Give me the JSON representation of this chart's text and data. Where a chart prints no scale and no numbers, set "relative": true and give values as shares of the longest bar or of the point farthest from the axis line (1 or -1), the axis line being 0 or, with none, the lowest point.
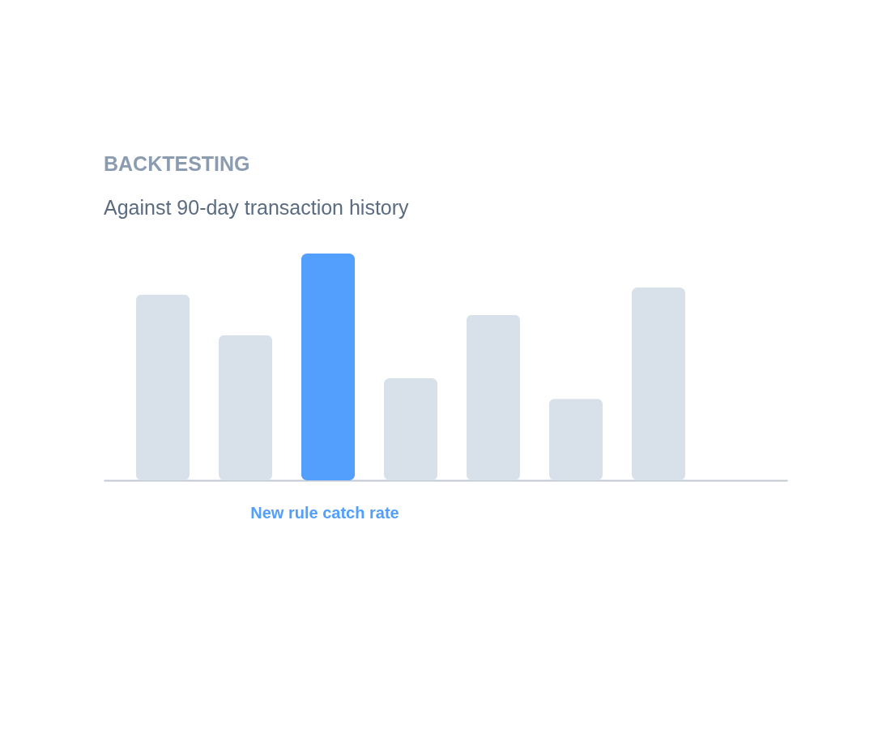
{
  "chart_data": {
    "type": "bar",
    "title": "BACKTESTING",
    "subtitle": "Against 90-day transaction history",
    "categories": [
      null,
      null,
      null,
      null,
      null,
      null,
      null
    ],
    "values": [
      0.82,
      0.64,
      1,
      0.45,
      0.73,
      0.36,
      0.85
    ],
    "colors": [
      "#d8e0e9",
      "#d8e0e9",
      "#539ffd",
      "#d8e0e9",
      "#d8e0e9",
      "#d8e0e9",
      "#d8e0e9"
    ],
    "relative": true,
    "annotations": [
      "New rule catch rate"
    ]
  }
}
